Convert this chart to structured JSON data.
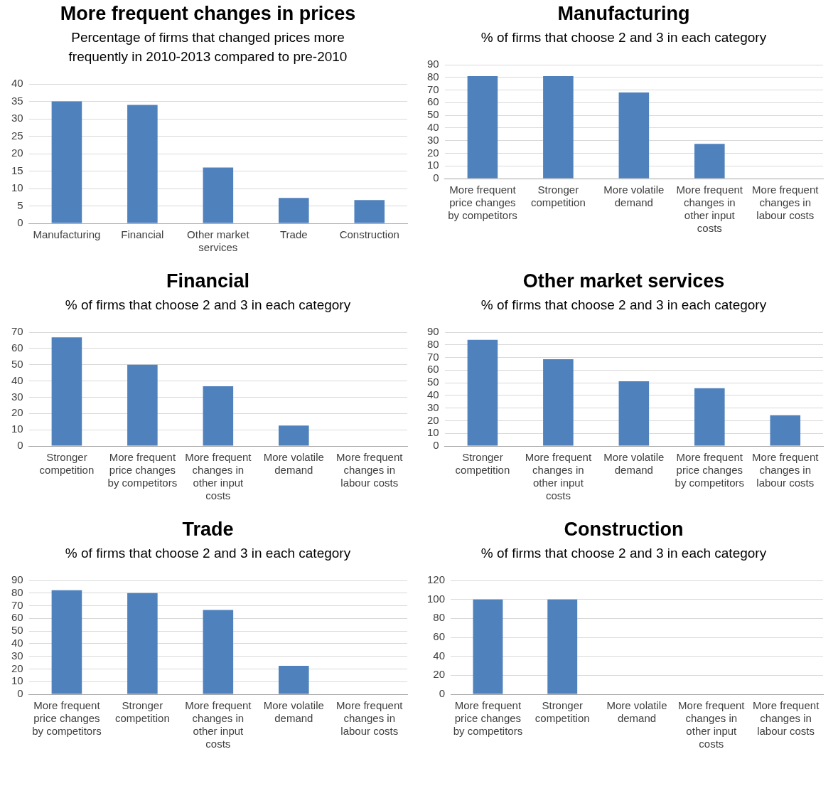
{
  "chart_data": [
    {
      "type": "bar",
      "title": "More frequent changes in prices",
      "subtitle": "Percentage of firms that changed prices more frequently in 2010-2013 compared to pre-2010",
      "categories": [
        "Manufacturing",
        "Financial",
        "Other market services",
        "Trade",
        "Construction"
      ],
      "values": [
        35,
        34,
        16,
        7.3,
        6.7
      ],
      "color": "#4f81bd",
      "ylim": [
        0,
        40
      ],
      "yticks": [
        0,
        5,
        10,
        15,
        20,
        25,
        30,
        35,
        40
      ],
      "grid": "y",
      "legend": false
    },
    {
      "type": "bar",
      "title": "Manufacturing",
      "subtitle": "% of firms that choose 2 and 3 in each category",
      "categories": [
        "More frequent price changes by competitors",
        "Stronger competition",
        "More volatile demand",
        "More frequent changes in other input costs",
        "More frequent changes in labour costs"
      ],
      "values": [
        81,
        81,
        68,
        27.4,
        0
      ],
      "color": "#4f81bd",
      "ylim": [
        0,
        90
      ],
      "yticks": [
        0,
        10,
        20,
        30,
        40,
        50,
        60,
        70,
        80,
        90
      ],
      "grid": "y",
      "legend": false
    },
    {
      "type": "bar",
      "title": "Financial",
      "subtitle": "% of firms that choose 2 and 3 in each category",
      "categories": [
        "Stronger competition",
        "More frequent price changes by competitors",
        "More frequent changes in other input costs",
        "More volatile demand",
        "More frequent changes in labour costs"
      ],
      "values": [
        66.8,
        50,
        36.7,
        12.6,
        0
      ],
      "color": "#4f81bd",
      "ylim": [
        0,
        70
      ],
      "yticks": [
        0,
        10,
        20,
        30,
        40,
        50,
        60,
        70
      ],
      "grid": "y",
      "legend": false
    },
    {
      "type": "bar",
      "title": "Other market services",
      "subtitle": "% of firms that choose 2 and 3 in each category",
      "categories": [
        "Stronger competition",
        "More frequent changes in other input costs",
        "More volatile demand",
        "More frequent price changes by competitors",
        "More frequent changes in labour costs"
      ],
      "values": [
        84,
        68.6,
        51.2,
        45.7,
        24.3
      ],
      "color": "#4f81bd",
      "ylim": [
        0,
        90
      ],
      "yticks": [
        0,
        10,
        20,
        30,
        40,
        50,
        60,
        70,
        80,
        90
      ],
      "grid": "y",
      "legend": false
    },
    {
      "type": "bar",
      "title": "Trade",
      "subtitle": "% of firms that choose 2 and 3 in each category",
      "categories": [
        "More frequent price changes by competitors",
        "Stronger competition",
        "More frequent changes in other input costs",
        "More volatile demand",
        "More frequent changes in labour costs"
      ],
      "values": [
        82.3,
        80,
        66.6,
        22.5,
        0
      ],
      "color": "#4f81bd",
      "ylim": [
        0,
        90
      ],
      "yticks": [
        0,
        10,
        20,
        30,
        40,
        50,
        60,
        70,
        80,
        90
      ],
      "grid": "y",
      "legend": false
    },
    {
      "type": "bar",
      "title": "Construction",
      "subtitle": "% of firms that choose 2 and 3 in each category",
      "categories": [
        "More frequent price changes by competitors",
        "Stronger competition",
        "More volatile demand",
        "More frequent changes in other input costs",
        "More frequent changes in labour costs"
      ],
      "values": [
        100,
        100,
        0,
        0,
        0
      ],
      "color": "#4f81bd",
      "ylim": [
        0,
        120
      ],
      "yticks": [
        0,
        20,
        40,
        60,
        80,
        100,
        120
      ],
      "grid": "y",
      "legend": false
    }
  ]
}
